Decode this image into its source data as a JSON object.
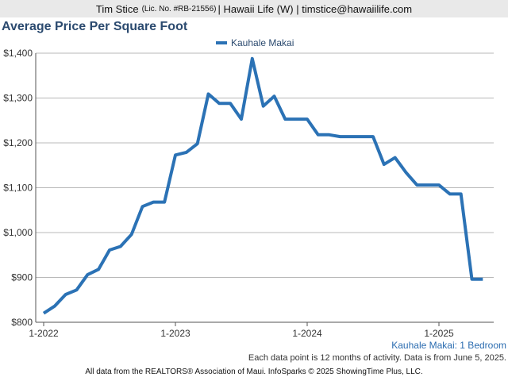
{
  "header": {
    "agent_name": "Tim Stice",
    "license": "(Lic. No. #RB-21556)",
    "details": "| Hawaii Life (W) | timstice@hawaiilife.com"
  },
  "chart_data": {
    "type": "line",
    "title": "Average Price Per Square Foot",
    "xlabel": "",
    "ylabel": "",
    "ylim": [
      800,
      1400
    ],
    "xlim": [
      "2022-01",
      "2025-05"
    ],
    "grid": true,
    "legend_position": "top-center",
    "yticks": [
      800,
      900,
      1000,
      1100,
      1200,
      1300,
      1400
    ],
    "ytick_labels": [
      "$800",
      "$900",
      "$1,000",
      "$1,100",
      "$1,200",
      "$1,300",
      "$1,400"
    ],
    "xticks": [
      "2022-01",
      "2023-01",
      "2024-01",
      "2025-01"
    ],
    "xtick_labels": [
      "1-2022",
      "1-2023",
      "1-2024",
      "1-2025"
    ],
    "series": [
      {
        "name": "Kauhale Makai",
        "color": "#2b72b5",
        "points": [
          [
            "2022-01",
            820
          ],
          [
            "2022-02",
            836
          ],
          [
            "2022-03",
            862
          ],
          [
            "2022-04",
            872
          ],
          [
            "2022-05",
            906
          ],
          [
            "2022-06",
            918
          ],
          [
            "2022-07",
            961
          ],
          [
            "2022-08",
            969
          ],
          [
            "2022-09",
            996
          ],
          [
            "2022-10",
            1058
          ],
          [
            "2022-11",
            1068
          ],
          [
            "2022-12",
            1068
          ],
          [
            "2023-01",
            1173
          ],
          [
            "2023-02",
            1179
          ],
          [
            "2023-03",
            1198
          ],
          [
            "2023-04",
            1309
          ],
          [
            "2023-05",
            1288
          ],
          [
            "2023-06",
            1288
          ],
          [
            "2023-07",
            1253
          ],
          [
            "2023-08",
            1388
          ],
          [
            "2023-09",
            1282
          ],
          [
            "2023-10",
            1304
          ],
          [
            "2023-11",
            1253
          ],
          [
            "2023-12",
            1253
          ],
          [
            "2024-01",
            1253
          ],
          [
            "2024-02",
            1218
          ],
          [
            "2024-03",
            1218
          ],
          [
            "2024-04",
            1214
          ],
          [
            "2024-05",
            1214
          ],
          [
            "2024-06",
            1214
          ],
          [
            "2024-07",
            1214
          ],
          [
            "2024-08",
            1152
          ],
          [
            "2024-09",
            1167
          ],
          [
            "2024-10",
            1134
          ],
          [
            "2024-11",
            1106
          ],
          [
            "2024-12",
            1106
          ],
          [
            "2025-01",
            1106
          ],
          [
            "2025-02",
            1086
          ],
          [
            "2025-03",
            1086
          ],
          [
            "2025-04",
            896
          ],
          [
            "2025-05",
            896
          ]
        ]
      }
    ]
  },
  "footer": {
    "subtitle": "Kauhale Makai: 1 Bedroom",
    "note": "Each data point is 12 months of activity. Data is from June 5, 2025.",
    "source": "All data from the REALTORS® Association of Maui. InfoSparks © 2025 ShowingTime Plus, LLC."
  }
}
